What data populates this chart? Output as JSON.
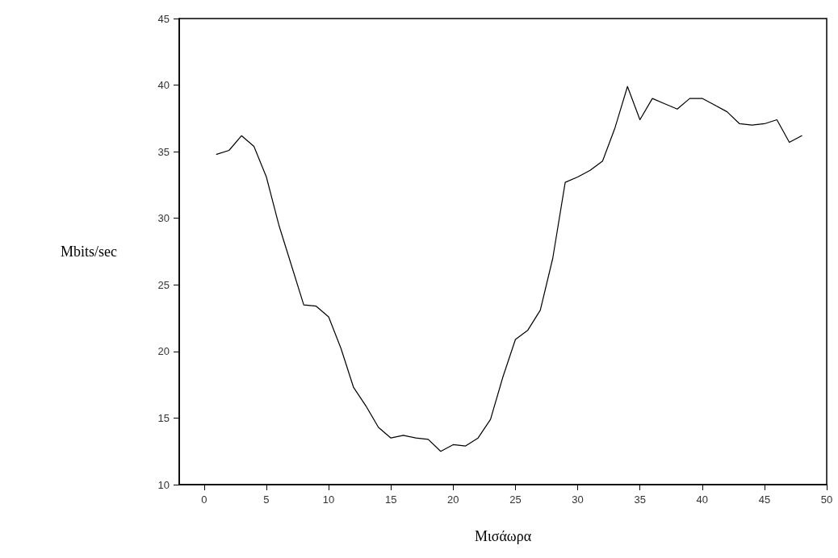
{
  "chart_data": {
    "type": "line",
    "xlabel": "Μισάωρα",
    "ylabel": "Mbits/sec",
    "x": [
      1,
      2,
      3,
      4,
      5,
      6,
      7,
      8,
      9,
      10,
      11,
      12,
      13,
      14,
      15,
      16,
      17,
      18,
      19,
      20,
      21,
      22,
      23,
      24,
      25,
      26,
      27,
      28,
      29,
      30,
      31,
      32,
      33,
      34,
      35,
      36,
      37,
      38,
      39,
      40,
      41,
      42,
      43,
      44,
      45,
      46,
      47,
      48
    ],
    "series": [
      {
        "color": "#000000",
        "values": [
          34.8,
          35.1,
          36.2,
          35.4,
          33.1,
          29.5,
          26.5,
          23.5,
          23.4,
          22.6,
          20.2,
          17.3,
          15.9,
          14.3,
          13.5,
          13.7,
          13.5,
          13.4,
          12.5,
          13.0,
          12.9,
          13.5,
          14.9,
          18.1,
          20.9,
          21.6,
          23.1,
          27.0,
          32.7,
          33.1,
          33.6,
          34.3,
          36.8,
          39.9,
          37.4,
          39.0,
          38.6,
          38.2,
          39.0,
          39.0,
          38.5,
          38.0,
          37.1,
          37.0,
          37.1,
          37.4,
          35.7,
          36.2
        ]
      }
    ],
    "xlim": [
      -2,
      50
    ],
    "xticks": [
      0,
      5,
      10,
      15,
      20,
      25,
      30,
      35,
      40,
      45,
      50
    ],
    "ylim": [
      10,
      45
    ],
    "yticks": [
      10,
      15,
      20,
      25,
      30,
      35,
      40,
      45
    ],
    "grid": false,
    "marker": "none",
    "line_style": "solid"
  }
}
